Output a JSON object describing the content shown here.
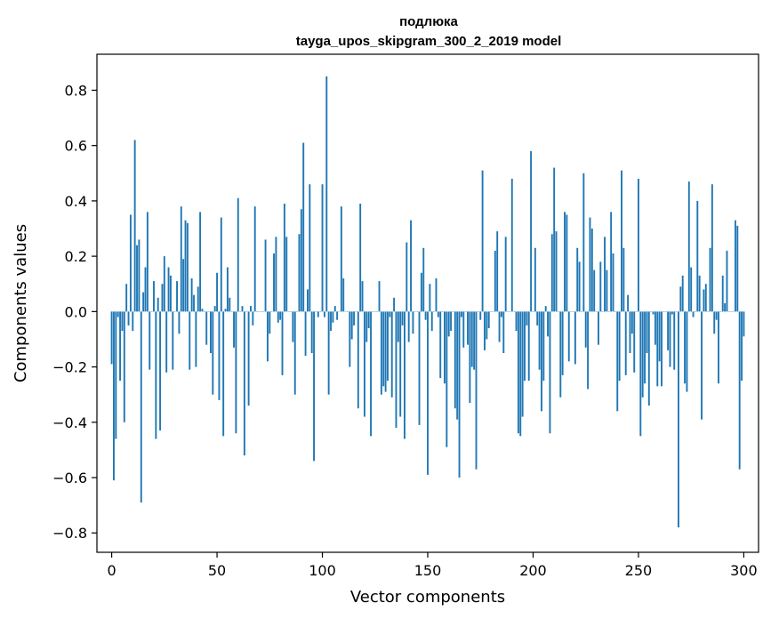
{
  "chart_data": {
    "type": "bar",
    "title": "подлюка",
    "subtitle": "tayga_upos_skipgram_300_2_2019 model",
    "xlabel": "Vector components",
    "ylabel": "Components values",
    "xlim": [
      -7,
      307
    ],
    "ylim": [
      -0.87,
      0.93
    ],
    "grid": false,
    "bar_color": "#1f77b4",
    "x_ticks": [
      0,
      50,
      100,
      150,
      200,
      250,
      300
    ],
    "x_tick_labels": [
      "0",
      "50",
      "100",
      "150",
      "200",
      "250",
      "300"
    ],
    "y_ticks": [
      -0.8,
      -0.6,
      -0.4,
      -0.2,
      0.0,
      0.2,
      0.4,
      0.6,
      0.8
    ],
    "y_tick_labels": [
      "−0.8",
      "−0.6",
      "−0.4",
      "−0.2",
      "0.0",
      "0.2",
      "0.4",
      "0.6",
      "0.8"
    ],
    "values": [
      -0.19,
      -0.61,
      -0.46,
      -0.02,
      -0.25,
      -0.07,
      -0.4,
      0.1,
      -0.05,
      0.35,
      -0.07,
      0.62,
      0.24,
      0.26,
      -0.69,
      0.07,
      0.16,
      0.36,
      -0.21,
      0.0,
      0.11,
      -0.46,
      0.05,
      -0.43,
      0.1,
      0.2,
      -0.22,
      0.16,
      0.13,
      -0.21,
      0.0,
      0.11,
      -0.08,
      0.38,
      0.19,
      0.33,
      0.32,
      -0.21,
      0.12,
      0.06,
      -0.2,
      0.09,
      0.36,
      0.01,
      0.0,
      -0.12,
      0.0,
      -0.15,
      -0.3,
      0.02,
      0.14,
      -0.32,
      0.34,
      -0.45,
      0.01,
      0.16,
      0.05,
      0.0,
      -0.13,
      -0.44,
      0.41,
      0.0,
      0.02,
      -0.52,
      0.0,
      -0.34,
      0.02,
      -0.05,
      0.38,
      0.0,
      0.0,
      0.0,
      0.0,
      0.26,
      -0.18,
      -0.08,
      0.0,
      0.21,
      0.27,
      -0.04,
      -0.03,
      -0.23,
      0.39,
      0.27,
      0.0,
      0.0,
      -0.11,
      -0.3,
      0.0,
      0.28,
      0.37,
      0.61,
      -0.16,
      0.08,
      0.46,
      -0.15,
      -0.54,
      0.0,
      -0.02,
      0.0,
      0.46,
      -0.02,
      0.85,
      -0.3,
      -0.07,
      -0.04,
      0.02,
      -0.03,
      0.0,
      0.38,
      0.12,
      0.0,
      0.0,
      -0.2,
      -0.1,
      -0.05,
      0.0,
      -0.35,
      0.39,
      0.11,
      -0.38,
      -0.11,
      -0.06,
      -0.45,
      0.0,
      0.0,
      0.0,
      0.11,
      -0.3,
      -0.27,
      -0.29,
      -0.25,
      -0.02,
      -0.31,
      0.05,
      -0.42,
      -0.11,
      -0.38,
      -0.05,
      -0.46,
      0.25,
      -0.11,
      0.33,
      -0.08,
      0.0,
      0.0,
      -0.41,
      0.14,
      0.23,
      -0.03,
      -0.59,
      0.1,
      -0.07,
      0.0,
      0.12,
      -0.02,
      -0.24,
      0.0,
      -0.26,
      -0.49,
      -0.09,
      -0.07,
      0.0,
      -0.35,
      -0.39,
      -0.6,
      -0.02,
      -0.13,
      0.0,
      -0.12,
      -0.33,
      -0.2,
      -0.21,
      -0.57,
      0.0,
      -0.03,
      0.51,
      -0.14,
      -0.1,
      -0.06,
      0.0,
      0.0,
      0.22,
      0.29,
      -0.11,
      -0.02,
      -0.15,
      0.27,
      0.0,
      0.0,
      0.48,
      0.0,
      -0.07,
      -0.44,
      -0.45,
      -0.38,
      -0.25,
      -0.05,
      -0.25,
      0.58,
      0.0,
      0.23,
      -0.05,
      -0.21,
      -0.36,
      -0.25,
      0.02,
      -0.09,
      -0.44,
      0.28,
      0.52,
      0.29,
      0.0,
      -0.31,
      -0.23,
      0.36,
      0.35,
      -0.18,
      0.0,
      0.0,
      -0.19,
      0.23,
      0.18,
      0.0,
      0.5,
      -0.13,
      -0.28,
      0.34,
      0.3,
      0.15,
      0.0,
      -0.12,
      0.18,
      0.0,
      0.27,
      0.15,
      0.0,
      0.36,
      0.21,
      0.0,
      -0.36,
      -0.25,
      0.51,
      0.23,
      -0.23,
      0.06,
      -0.15,
      -0.08,
      -0.22,
      0.0,
      0.48,
      -0.45,
      -0.31,
      -0.26,
      -0.15,
      -0.34,
      0.0,
      -0.01,
      -0.12,
      -0.27,
      -0.18,
      -0.27,
      0.0,
      0.0,
      -0.14,
      -0.2,
      -0.01,
      -0.21,
      0.0,
      -0.78,
      0.09,
      0.13,
      -0.26,
      -0.29,
      0.47,
      0.16,
      -0.02,
      0.0,
      0.4,
      0.13,
      -0.39,
      0.08,
      0.1,
      0.0,
      0.23,
      0.46,
      -0.08,
      -0.03,
      -0.26,
      0.0,
      0.13,
      0.03,
      0.22,
      0.0,
      0.0,
      0.0,
      0.33,
      0.31,
      -0.57,
      -0.25,
      -0.09
    ]
  }
}
